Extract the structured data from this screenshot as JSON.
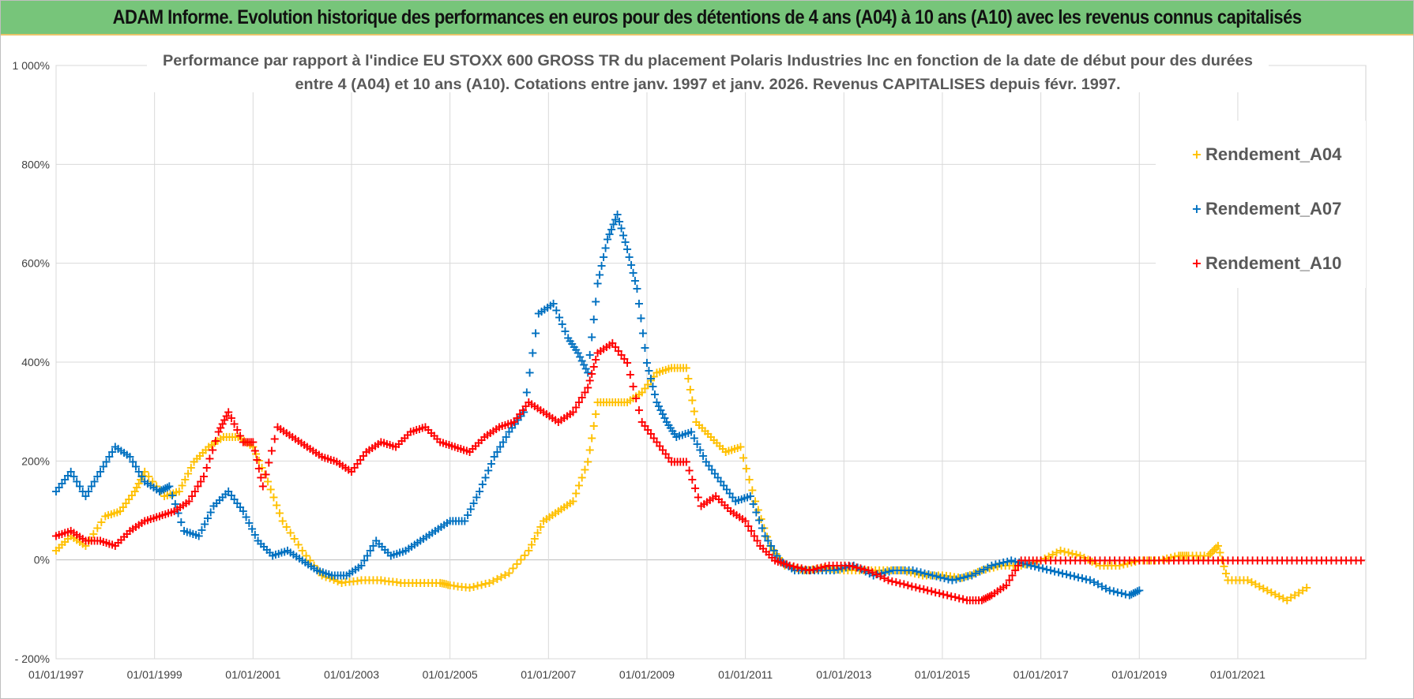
{
  "header": {
    "title": "ADAM Informe. Evolution historique des performances en euros pour des détentions de 4 ans (A04) à 10 ans (A10) avec les revenus connus capitalisés"
  },
  "chart_data": {
    "type": "scatter",
    "title_line1": "Performance par rapport à l'indice EU STOXX 600 GROSS TR  du placement Polaris Industries Inc en fonction de la date de début pour des durées",
    "title_line2": "entre 4 (A04) et 10 ans (A10).  Cotations entre janv. 1997 et janv. 2026. Revenus CAPITALISES depuis févr. 1997.",
    "xlabel": "",
    "ylabel": "",
    "xlim": [
      1997.0,
      2023.6
    ],
    "ylim": [
      -200,
      1000
    ],
    "x_ticks": [
      1997,
      1999,
      2001,
      2003,
      2005,
      2007,
      2009,
      2011,
      2013,
      2015,
      2017,
      2019,
      2021
    ],
    "x_tick_labels": [
      "01/01/1997",
      "01/01/1999",
      "01/01/2001",
      "01/01/2003",
      "01/01/2005",
      "01/01/2007",
      "01/01/2009",
      "01/01/2011",
      "01/01/2013",
      "01/01/2015",
      "01/01/2017",
      "01/01/2019",
      "01/01/2021"
    ],
    "y_ticks": [
      -200,
      0,
      200,
      400,
      600,
      800,
      1000
    ],
    "y_tick_labels": [
      "- 200%",
      "0%",
      "200%",
      "400%",
      "600%",
      "800%",
      "1 000%"
    ],
    "grid": true,
    "legend_position": "top-right",
    "marker": "+",
    "series": [
      {
        "name": "Rendement_A04",
        "color": "#ffc000",
        "x": [
          1997.0,
          1997.3,
          1997.6,
          1998.0,
          1998.3,
          1998.6,
          1998.8,
          1999.2,
          1999.5,
          1999.8,
          2000.1,
          2000.4,
          2000.7,
          2001.0,
          2001.3,
          2001.6,
          2002.0,
          2002.4,
          2002.8,
          2003.2,
          2003.6,
          2004.0,
          2004.4,
          2004.8,
          2005.0,
          2005.4,
          2005.8,
          2006.2,
          2006.6,
          2006.9,
          2007.2,
          2007.5,
          2007.8,
          2008.0,
          2008.3,
          2008.6,
          2008.9,
          2009.2,
          2009.5,
          2009.8,
          2010.0,
          2010.3,
          2010.6,
          2010.9,
          2011.2,
          2011.5,
          2011.8,
          2012.2,
          2012.6,
          2013.0,
          2013.4,
          2013.8,
          2014.2,
          2014.6,
          2015.0,
          2015.4,
          2015.8,
          2016.2,
          2016.6,
          2017.0,
          2017.4,
          2017.8,
          2018.2,
          2018.6,
          2019.0,
          2019.4,
          2019.8,
          2020.0,
          2020.4,
          2020.6,
          2020.8,
          2021.2,
          2021.6,
          2022.0,
          2022.4
        ],
        "y": [
          20,
          50,
          30,
          90,
          100,
          140,
          180,
          130,
          140,
          200,
          230,
          250,
          250,
          230,
          160,
          80,
          20,
          -30,
          -45,
          -40,
          -40,
          -45,
          -45,
          -45,
          -50,
          -55,
          -45,
          -25,
          20,
          80,
          100,
          120,
          200,
          320,
          320,
          320,
          340,
          380,
          390,
          390,
          280,
          250,
          220,
          230,
          120,
          30,
          -10,
          -20,
          -15,
          -20,
          -20,
          -20,
          -20,
          -30,
          -30,
          -35,
          -20,
          -10,
          -10,
          0,
          20,
          10,
          -10,
          -10,
          0,
          0,
          10,
          10,
          10,
          30,
          -40,
          -40,
          -60,
          -80,
          -55
        ]
      },
      {
        "name": "Rendement_A07",
        "color": "#0070c0",
        "x": [
          1997.0,
          1997.3,
          1997.6,
          1997.9,
          1998.2,
          1998.5,
          1998.8,
          1999.1,
          1999.3,
          1999.6,
          1999.9,
          2000.2,
          2000.5,
          2000.8,
          2001.1,
          2001.4,
          2001.7,
          2002.0,
          2002.3,
          2002.6,
          2002.9,
          2003.2,
          2003.5,
          2003.8,
          2004.1,
          2004.4,
          2004.7,
          2005.0,
          2005.3,
          2005.6,
          2005.9,
          2006.2,
          2006.5,
          2006.8,
          2007.1,
          2007.4,
          2007.6,
          2007.8,
          2008.0,
          2008.2,
          2008.4,
          2008.6,
          2008.8,
          2009.0,
          2009.2,
          2009.4,
          2009.6,
          2009.9,
          2010.2,
          2010.5,
          2010.8,
          2011.1,
          2011.4,
          2011.7,
          2012.0,
          2012.4,
          2012.8,
          2013.2,
          2013.6,
          2014.0,
          2014.4,
          2014.8,
          2015.2,
          2015.6,
          2016.0,
          2016.4,
          2016.8,
          2017.2,
          2017.6,
          2018.0,
          2018.4,
          2018.8,
          2019.0
        ],
        "y": [
          140,
          180,
          130,
          180,
          230,
          210,
          160,
          140,
          150,
          60,
          50,
          110,
          140,
          100,
          40,
          10,
          20,
          0,
          -20,
          -30,
          -30,
          -10,
          40,
          10,
          20,
          40,
          60,
          80,
          80,
          140,
          210,
          260,
          300,
          500,
          520,
          450,
          420,
          380,
          560,
          650,
          700,
          630,
          550,
          400,
          320,
          280,
          250,
          260,
          200,
          160,
          120,
          130,
          50,
          0,
          -20,
          -20,
          -20,
          -10,
          -30,
          -20,
          -20,
          -30,
          -40,
          -30,
          -10,
          0,
          -10,
          -20,
          -30,
          -40,
          -60,
          -70,
          -60
        ]
      },
      {
        "name": "Rendement_A10",
        "color": "#ff0000",
        "x": [
          1997.0,
          1997.3,
          1997.6,
          1997.9,
          1998.2,
          1998.5,
          1998.8,
          1999.1,
          1999.4,
          1999.7,
          2000.0,
          2000.3,
          2000.5,
          2000.8,
          2001.0,
          2001.2,
          2001.5,
          2001.8,
          2002.1,
          2002.4,
          2002.7,
          2003.0,
          2003.3,
          2003.6,
          2003.9,
          2004.2,
          2004.5,
          2004.8,
          2005.1,
          2005.4,
          2005.7,
          2006.0,
          2006.3,
          2006.6,
          2006.9,
          2007.2,
          2007.5,
          2007.8,
          2008.0,
          2008.3,
          2008.6,
          2008.9,
          2009.2,
          2009.5,
          2009.8,
          2010.1,
          2010.4,
          2010.7,
          2011.0,
          2011.3,
          2011.6,
          2011.9,
          2012.3,
          2012.7,
          2013.1,
          2013.5,
          2013.9,
          2014.3,
          2014.7,
          2015.1,
          2015.5,
          2015.8,
          2016.0,
          2016.3,
          2016.6,
          2017.0,
          2017.5,
          2018.0,
          2018.5,
          2019.0,
          2019.5,
          2020.0,
          2020.5,
          2021.0,
          2021.5,
          2022.0,
          2022.5,
          2023.0,
          2023.5
        ],
        "y": [
          50,
          60,
          40,
          40,
          30,
          60,
          80,
          90,
          100,
          120,
          170,
          260,
          300,
          240,
          240,
          150,
          270,
          250,
          230,
          210,
          200,
          180,
          220,
          240,
          230,
          260,
          270,
          240,
          230,
          220,
          250,
          270,
          280,
          320,
          300,
          280,
          300,
          350,
          420,
          440,
          400,
          280,
          240,
          200,
          200,
          110,
          130,
          100,
          80,
          30,
          0,
          -10,
          -20,
          -10,
          -10,
          -20,
          -40,
          -50,
          -60,
          -70,
          -80,
          -80,
          -70,
          -50,
          0,
          0,
          0,
          0,
          0,
          0,
          0,
          0,
          0,
          0,
          0,
          0,
          0,
          0,
          0
        ]
      }
    ]
  }
}
